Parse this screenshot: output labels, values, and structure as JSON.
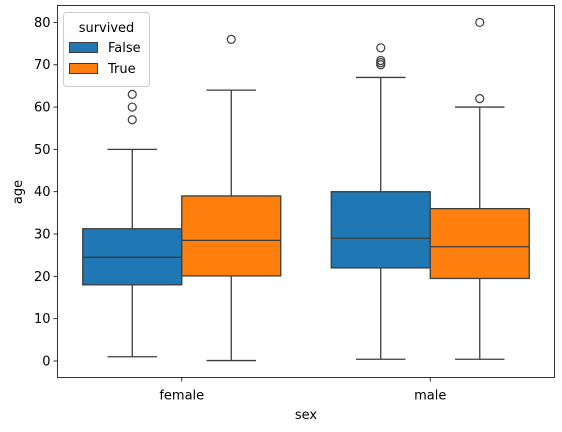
{
  "chart_data": {
    "type": "box",
    "xlabel": "sex",
    "ylabel": "age",
    "categories": [
      "female",
      "male"
    ],
    "ylim": [
      -3.9,
      84
    ],
    "yticks": [
      0,
      10,
      20,
      30,
      40,
      50,
      60,
      70,
      80
    ],
    "grid": false,
    "legend": {
      "title": "survived",
      "placement": "top-left"
    },
    "series": [
      {
        "name": "False",
        "color": "#1f77b4",
        "boxes": [
          {
            "category": "female",
            "whislo": 1,
            "q1": 18,
            "median": 24.5,
            "q3": 31.25,
            "whishi": 50,
            "fliers": [
              57,
              60,
              63
            ]
          },
          {
            "category": "male",
            "whislo": 0.42,
            "q1": 22,
            "median": 29,
            "q3": 40,
            "whishi": 67,
            "fliers": [
              70,
              70.5,
              71,
              74
            ]
          }
        ]
      },
      {
        "name": "True",
        "color": "#ff7f0e",
        "boxes": [
          {
            "category": "female",
            "whislo": 0.1,
            "q1": 20.1,
            "median": 28.5,
            "q3": 39,
            "whishi": 64,
            "fliers": [
              76
            ]
          },
          {
            "category": "male",
            "whislo": 0.42,
            "q1": 19.5,
            "median": 27,
            "q3": 36,
            "whishi": 60,
            "fliers": [
              62,
              80
            ]
          }
        ]
      }
    ]
  }
}
